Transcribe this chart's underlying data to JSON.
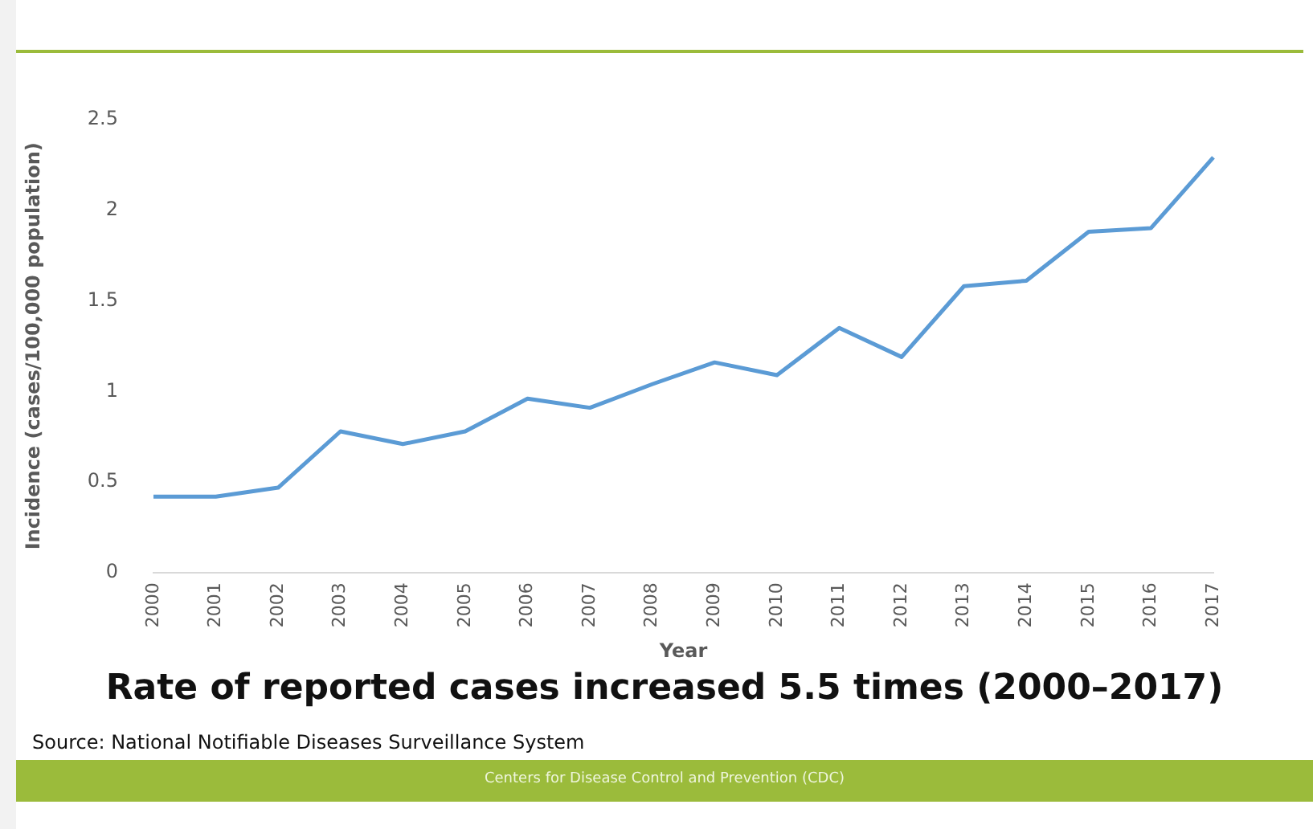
{
  "chart_data": {
    "type": "line",
    "title": "Rate of reported cases increased 5.5 times (2000–2017)",
    "xlabel": "Year",
    "ylabel": "Incidence (cases/100,000 population)",
    "categories": [
      "2000",
      "2001",
      "2002",
      "2003",
      "2004",
      "2005",
      "2006",
      "2007",
      "2008",
      "2009",
      "2010",
      "2011",
      "2012",
      "2013",
      "2014",
      "2015",
      "2016",
      "2017"
    ],
    "series": [
      {
        "color": "#5b9bd5",
        "values": [
          0.42,
          0.42,
          0.47,
          0.78,
          0.71,
          0.78,
          0.96,
          0.91,
          1.04,
          1.16,
          1.09,
          1.35,
          1.19,
          1.58,
          1.61,
          1.88,
          1.9,
          2.29
        ]
      }
    ],
    "ylim": [
      0,
      2.5
    ],
    "yticks": [
      0,
      0.5,
      1,
      1.5,
      2,
      2.5
    ],
    "marker": "none",
    "legend": false,
    "annotations": [
      "Source: National Notifiable Diseases Surveillance System",
      "Centers for Disease Control and Prevention (CDC)"
    ]
  }
}
